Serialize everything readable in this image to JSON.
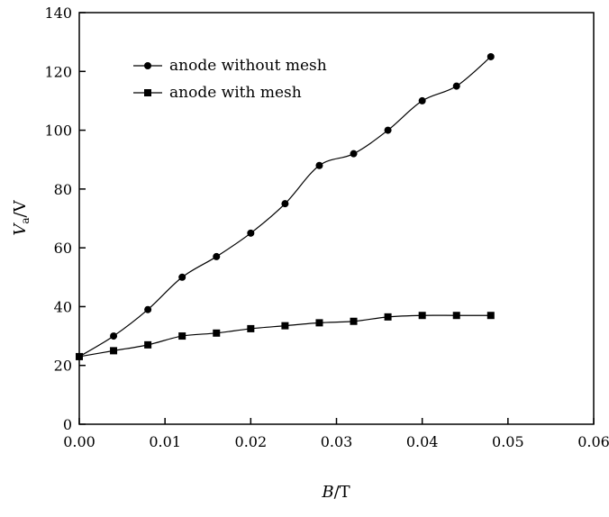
{
  "chart_data": {
    "type": "line",
    "xlabel_italic": "B",
    "xlabel_rest": "/T",
    "ylabel_italic": "V",
    "ylabel_sub": "a",
    "ylabel_rest": "/V",
    "xlim": [
      0,
      0.06
    ],
    "ylim": [
      0,
      140
    ],
    "xticks": [
      0,
      0.01,
      0.02,
      0.03,
      0.04,
      0.05,
      0.06
    ],
    "xtick_labels": [
      "0.00",
      "0.01",
      "0.02",
      "0.03",
      "0.04",
      "0.05",
      "0.06"
    ],
    "yticks": [
      0,
      20,
      40,
      60,
      80,
      100,
      120,
      140
    ],
    "ytick_labels": [
      "0",
      "20",
      "40",
      "60",
      "80",
      "100",
      "120",
      "140"
    ],
    "grid": false,
    "legend_position": "top-left",
    "series": [
      {
        "name": "anode without mesh",
        "marker": "circle",
        "x": [
          0,
          0.004,
          0.008,
          0.012,
          0.016,
          0.02,
          0.024,
          0.028,
          0.032,
          0.036,
          0.04,
          0.044,
          0.048
        ],
        "y": [
          23,
          30,
          39,
          50,
          57,
          65,
          75,
          88,
          92,
          100,
          110,
          115,
          125
        ]
      },
      {
        "name": "anode with mesh",
        "marker": "square",
        "x": [
          0,
          0.004,
          0.008,
          0.012,
          0.016,
          0.02,
          0.024,
          0.028,
          0.032,
          0.036,
          0.04,
          0.044,
          0.048
        ],
        "y": [
          23,
          25,
          27,
          30,
          31,
          32.5,
          33.5,
          34.5,
          35,
          36.5,
          37,
          37,
          37
        ]
      }
    ]
  }
}
